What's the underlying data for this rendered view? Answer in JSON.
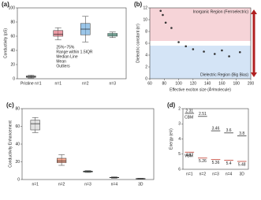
{
  "chart_data": [
    {
      "type": "box",
      "label": "(a)",
      "ylabel": "Conductivity (pS)",
      "categories": [
        "Pristine n=1",
        "n=1",
        "n=2",
        "n=3"
      ],
      "colors": [
        "#888888",
        "#e05a6a",
        "#5aa0d8",
        "#4fb89a"
      ],
      "boxes": [
        {
          "min": 1,
          "q1": 2,
          "median": 3,
          "q3": 4,
          "max": 5
        },
        {
          "min": 55,
          "q1": 60,
          "median": 63,
          "q3": 68,
          "max": 72
        },
        {
          "min": 52,
          "q1": 62,
          "median": 70,
          "q3": 78,
          "max": 88
        },
        {
          "min": 58,
          "q1": 60,
          "median": 62,
          "q3": 64,
          "max": 66
        }
      ],
      "legend": [
        "25%~75%",
        "Range within 1.5IQR",
        "Median Line",
        "Mean",
        "Outliers"
      ],
      "ylim": [
        0,
        100
      ],
      "yticks": [
        0,
        20,
        40,
        60,
        80,
        100
      ]
    },
    {
      "type": "scatter",
      "label": "(b)",
      "xlabel": "Effective exciton size (Å³/molecule)",
      "ylabel": "Dielectric constant (εr)",
      "x": [
        75,
        78,
        82,
        90,
        100,
        110,
        120,
        135,
        150,
        160,
        170,
        185
      ],
      "y": [
        11.5,
        10.8,
        9.5,
        8.6,
        6.2,
        5.5,
        5.0,
        4.6,
        4.2,
        4.8,
        3.8,
        4.5
      ],
      "color": "#333333",
      "annotations": [
        "Inorganic Region (Ferroelectric)",
        "Dielectric Region (Big Bias)"
      ],
      "xlim": [
        60,
        200
      ],
      "xticks": [
        60,
        80,
        100,
        120,
        140,
        160,
        180,
        200
      ],
      "ylim": [
        0,
        12
      ],
      "yticks": [
        0,
        2,
        4,
        6,
        8,
        10,
        12
      ]
    },
    {
      "type": "box",
      "label": "(c)",
      "ylabel": "Conductivity Enhancement",
      "categories": [
        "n=1",
        "n=2",
        "n=3",
        "n=4",
        "3D"
      ],
      "colors": [
        "#cccccc",
        "#e8704a",
        "#4a9a6a",
        "#888888",
        "#888888"
      ],
      "boxes": [
        {
          "min": 53,
          "q1": 56,
          "median": 63,
          "q3": 67,
          "max": 70
        },
        {
          "min": 16,
          "q1": 19,
          "median": 21,
          "q3": 24,
          "max": 28
        },
        {
          "min": 8,
          "q1": 8.5,
          "median": 9,
          "q3": 9.5,
          "max": 10
        },
        {
          "min": 1.5,
          "q1": 2,
          "median": 2.2,
          "q3": 2.5,
          "max": 3
        },
        {
          "min": 0.5,
          "q1": 0.8,
          "median": 1,
          "q3": 1.2,
          "max": 1.4
        }
      ],
      "ylim": [
        0,
        80
      ],
      "yticks": [
        0,
        20,
        40,
        60,
        80
      ]
    },
    {
      "type": "level",
      "label": "(d)",
      "ylabel": "Energy (eV)",
      "y_inverted": true,
      "categories": [
        "n=1",
        "n=2",
        "n=3",
        "n=4",
        "3D"
      ],
      "series": [
        {
          "name": "CBM",
          "color": "#333333",
          "values": [
            2.31,
            2.51,
            3.46,
            3.6,
            3.8
          ]
        },
        {
          "name": "VBM",
          "color": "#c0392b",
          "values": [
            4.87,
            5.26,
            5.36,
            5.4,
            5.48
          ]
        }
      ],
      "ylim": [
        2,
        6
      ],
      "yticks": [
        2,
        3,
        4,
        5,
        6
      ]
    }
  ]
}
